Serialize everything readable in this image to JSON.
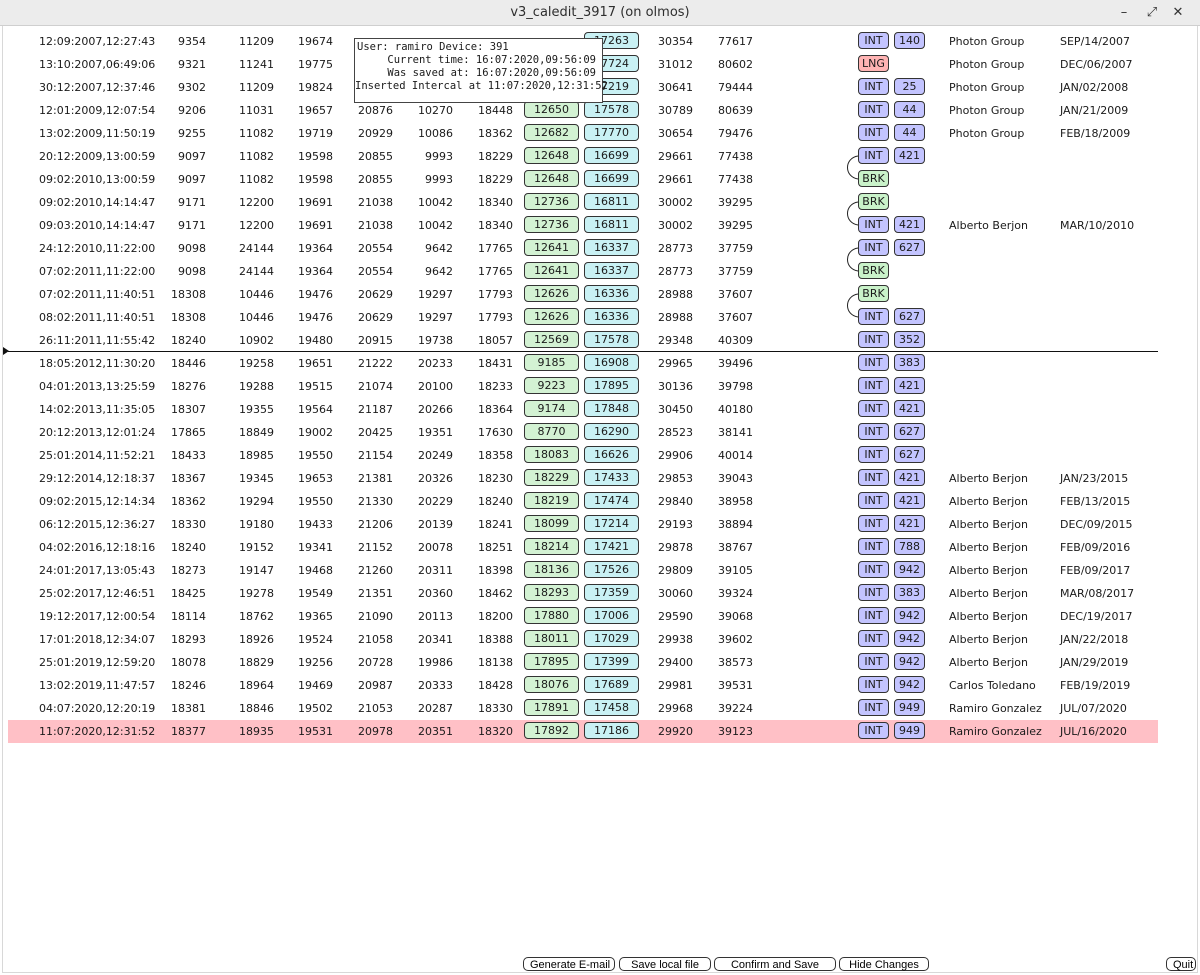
{
  "window": {
    "title": "v3_caledit_3917 (on olmos)",
    "min_icon": "minimize-icon",
    "max_icon": "maximize-icon",
    "close_icon": "close-icon"
  },
  "tooltip": {
    "line1": "User: ramiro Device: 391",
    "line2": "Current time: 16:07:2020,09:56:09",
    "line3": "Was saved at: 16:07:2020,09:56:09",
    "line4": "Inserted Intercal at 11:07:2020,12:31:52"
  },
  "rows": [
    {
      "ts": "12:09:2007,12:27:43",
      "a": "9354",
      "b": "11209",
      "c": "19674",
      "d": "",
      "e": "",
      "f": "",
      "g": "",
      "h": "17263",
      "i": "30354",
      "j": "77617",
      "tag": "INT",
      "num": "140",
      "user": "Photon Group",
      "date": "SEP/14/2007"
    },
    {
      "ts": "13:10:2007,06:49:06",
      "a": "9321",
      "b": "11241",
      "c": "19775",
      "d": "",
      "e": "",
      "f": "",
      "g": "",
      "h": "17724",
      "i": "31012",
      "j": "80602",
      "tag": "LNG",
      "num": "",
      "user": "Photon Group",
      "date": "DEC/06/2007"
    },
    {
      "ts": "30:12:2007,12:37:46",
      "a": "9302",
      "b": "11209",
      "c": "19824",
      "d": "",
      "e": "",
      "f": "",
      "g": "",
      "h": "17219",
      "i": "30641",
      "j": "79444",
      "tag": "INT",
      "num": "25",
      "user": "Photon Group",
      "date": "JAN/02/2008"
    },
    {
      "ts": "12:01:2009,12:07:54",
      "a": "9206",
      "b": "11031",
      "c": "19657",
      "d": "20876",
      "e": "10270",
      "f": "18448",
      "g": "12650",
      "h": "17578",
      "i": "30789",
      "j": "80639",
      "tag": "INT",
      "num": "44",
      "user": "Photon Group",
      "date": "JAN/21/2009"
    },
    {
      "ts": "13:02:2009,11:50:19",
      "a": "9255",
      "b": "11082",
      "c": "19719",
      "d": "20929",
      "e": "10086",
      "f": "18362",
      "g": "12682",
      "h": "17770",
      "i": "30654",
      "j": "79476",
      "tag": "INT",
      "num": "44",
      "user": "Photon Group",
      "date": "FEB/18/2009"
    },
    {
      "ts": "20:12:2009,13:00:59",
      "a": "9097",
      "b": "11082",
      "c": "19598",
      "d": "20855",
      "e": "9993",
      "f": "18229",
      "g": "12648",
      "h": "16699",
      "i": "29661",
      "j": "77438",
      "tag": "INT",
      "num": "421",
      "user": "",
      "date": ""
    },
    {
      "ts": "09:02:2010,13:00:59",
      "a": "9097",
      "b": "11082",
      "c": "19598",
      "d": "20855",
      "e": "9993",
      "f": "18229",
      "g": "12648",
      "h": "16699",
      "i": "29661",
      "j": "77438",
      "tag": "BRK",
      "num": "",
      "user": "",
      "date": ""
    },
    {
      "ts": "09:02:2010,14:14:47",
      "a": "9171",
      "b": "12200",
      "c": "19691",
      "d": "21038",
      "e": "10042",
      "f": "18340",
      "g": "12736",
      "h": "16811",
      "i": "30002",
      "j": "39295",
      "tag": "BRK",
      "num": "",
      "user": "",
      "date": ""
    },
    {
      "ts": "09:03:2010,14:14:47",
      "a": "9171",
      "b": "12200",
      "c": "19691",
      "d": "21038",
      "e": "10042",
      "f": "18340",
      "g": "12736",
      "h": "16811",
      "i": "30002",
      "j": "39295",
      "tag": "INT",
      "num": "421",
      "user": "Alberto Berjon",
      "date": "MAR/10/2010"
    },
    {
      "ts": "24:12:2010,11:22:00",
      "a": "9098",
      "b": "24144",
      "c": "19364",
      "d": "20554",
      "e": "9642",
      "f": "17765",
      "g": "12641",
      "h": "16337",
      "i": "28773",
      "j": "37759",
      "tag": "INT",
      "num": "627",
      "user": "",
      "date": ""
    },
    {
      "ts": "07:02:2011,11:22:00",
      "a": "9098",
      "b": "24144",
      "c": "19364",
      "d": "20554",
      "e": "9642",
      "f": "17765",
      "g": "12641",
      "h": "16337",
      "i": "28773",
      "j": "37759",
      "tag": "BRK",
      "num": "",
      "user": "",
      "date": ""
    },
    {
      "ts": "07:02:2011,11:40:51",
      "a": "18308",
      "b": "10446",
      "c": "19476",
      "d": "20629",
      "e": "19297",
      "f": "17793",
      "g": "12626",
      "h": "16336",
      "i": "28988",
      "j": "37607",
      "tag": "BRK",
      "num": "",
      "user": "",
      "date": ""
    },
    {
      "ts": "08:02:2011,11:40:51",
      "a": "18308",
      "b": "10446",
      "c": "19476",
      "d": "20629",
      "e": "19297",
      "f": "17793",
      "g": "12626",
      "h": "16336",
      "i": "28988",
      "j": "37607",
      "tag": "INT",
      "num": "627",
      "user": "",
      "date": ""
    },
    {
      "ts": "26:11:2011,11:55:42",
      "a": "18240",
      "b": "10902",
      "c": "19480",
      "d": "20915",
      "e": "19738",
      "f": "18057",
      "g": "12569",
      "h": "17578",
      "i": "29348",
      "j": "40309",
      "tag": "INT",
      "num": "352",
      "user": "",
      "date": ""
    },
    {
      "ts": "18:05:2012,11:30:20",
      "a": "18446",
      "b": "19258",
      "c": "19651",
      "d": "21222",
      "e": "20233",
      "f": "18431",
      "g": "9185",
      "h": "16908",
      "i": "29965",
      "j": "39496",
      "tag": "INT",
      "num": "383",
      "user": "",
      "date": ""
    },
    {
      "ts": "04:01:2013,13:25:59",
      "a": "18276",
      "b": "19288",
      "c": "19515",
      "d": "21074",
      "e": "20100",
      "f": "18233",
      "g": "9223",
      "h": "17895",
      "i": "30136",
      "j": "39798",
      "tag": "INT",
      "num": "421",
      "user": "",
      "date": ""
    },
    {
      "ts": "14:02:2013,11:35:05",
      "a": "18307",
      "b": "19355",
      "c": "19564",
      "d": "21187",
      "e": "20266",
      "f": "18364",
      "g": "9174",
      "h": "17848",
      "i": "30450",
      "j": "40180",
      "tag": "INT",
      "num": "421",
      "user": "",
      "date": ""
    },
    {
      "ts": "20:12:2013,12:01:24",
      "a": "17865",
      "b": "18849",
      "c": "19002",
      "d": "20425",
      "e": "19351",
      "f": "17630",
      "g": "8770",
      "h": "16290",
      "i": "28523",
      "j": "38141",
      "tag": "INT",
      "num": "627",
      "user": "",
      "date": ""
    },
    {
      "ts": "25:01:2014,11:52:21",
      "a": "18433",
      "b": "18985",
      "c": "19550",
      "d": "21154",
      "e": "20249",
      "f": "18358",
      "g": "18083",
      "h": "16626",
      "i": "29906",
      "j": "40014",
      "tag": "INT",
      "num": "627",
      "user": "",
      "date": ""
    },
    {
      "ts": "29:12:2014,12:18:37",
      "a": "18367",
      "b": "19345",
      "c": "19653",
      "d": "21381",
      "e": "20326",
      "f": "18230",
      "g": "18229",
      "h": "17433",
      "i": "29853",
      "j": "39043",
      "tag": "INT",
      "num": "421",
      "user": "Alberto Berjon",
      "date": "JAN/23/2015"
    },
    {
      "ts": "09:02:2015,12:14:34",
      "a": "18362",
      "b": "19294",
      "c": "19550",
      "d": "21330",
      "e": "20229",
      "f": "18240",
      "g": "18219",
      "h": "17474",
      "i": "29840",
      "j": "38958",
      "tag": "INT",
      "num": "421",
      "user": "Alberto Berjon",
      "date": "FEB/13/2015"
    },
    {
      "ts": "06:12:2015,12:36:27",
      "a": "18330",
      "b": "19180",
      "c": "19433",
      "d": "21206",
      "e": "20139",
      "f": "18241",
      "g": "18099",
      "h": "17214",
      "i": "29193",
      "j": "38894",
      "tag": "INT",
      "num": "421",
      "user": "Alberto Berjon",
      "date": "DEC/09/2015"
    },
    {
      "ts": "04:02:2016,12:18:16",
      "a": "18240",
      "b": "19152",
      "c": "19341",
      "d": "21152",
      "e": "20078",
      "f": "18251",
      "g": "18214",
      "h": "17421",
      "i": "29878",
      "j": "38767",
      "tag": "INT",
      "num": "788",
      "user": "Alberto Berjon",
      "date": "FEB/09/2016"
    },
    {
      "ts": "24:01:2017,13:05:43",
      "a": "18273",
      "b": "19147",
      "c": "19468",
      "d": "21260",
      "e": "20311",
      "f": "18398",
      "g": "18136",
      "h": "17526",
      "i": "29809",
      "j": "39105",
      "tag": "INT",
      "num": "942",
      "user": "Alberto Berjon",
      "date": "FEB/09/2017"
    },
    {
      "ts": "25:02:2017,12:46:51",
      "a": "18425",
      "b": "19278",
      "c": "19549",
      "d": "21351",
      "e": "20360",
      "f": "18462",
      "g": "18293",
      "h": "17359",
      "i": "30060",
      "j": "39324",
      "tag": "INT",
      "num": "383",
      "user": "Alberto Berjon",
      "date": "MAR/08/2017"
    },
    {
      "ts": "19:12:2017,12:00:54",
      "a": "18114",
      "b": "18762",
      "c": "19365",
      "d": "21090",
      "e": "20113",
      "f": "18200",
      "g": "17880",
      "h": "17006",
      "i": "29590",
      "j": "39068",
      "tag": "INT",
      "num": "942",
      "user": "Alberto Berjon",
      "date": "DEC/19/2017"
    },
    {
      "ts": "17:01:2018,12:34:07",
      "a": "18293",
      "b": "18926",
      "c": "19524",
      "d": "21058",
      "e": "20341",
      "f": "18388",
      "g": "18011",
      "h": "17029",
      "i": "29938",
      "j": "39602",
      "tag": "INT",
      "num": "942",
      "user": "Alberto Berjon",
      "date": "JAN/22/2018"
    },
    {
      "ts": "25:01:2019,12:59:20",
      "a": "18078",
      "b": "18829",
      "c": "19256",
      "d": "20728",
      "e": "19986",
      "f": "18138",
      "g": "17895",
      "h": "17399",
      "i": "29400",
      "j": "38573",
      "tag": "INT",
      "num": "942",
      "user": "Alberto Berjon",
      "date": "JAN/29/2019"
    },
    {
      "ts": "13:02:2019,11:47:57",
      "a": "18246",
      "b": "18964",
      "c": "19469",
      "d": "20987",
      "e": "20333",
      "f": "18428",
      "g": "18076",
      "h": "17689",
      "i": "29981",
      "j": "39531",
      "tag": "INT",
      "num": "942",
      "user": "Carlos Toledano",
      "date": "FEB/19/2019"
    },
    {
      "ts": "04:07:2020,12:20:19",
      "a": "18381",
      "b": "18846",
      "c": "19502",
      "d": "21053",
      "e": "20287",
      "f": "18330",
      "g": "17891",
      "h": "17458",
      "i": "29968",
      "j": "39224",
      "tag": "INT",
      "num": "949",
      "user": "Ramiro Gonzalez",
      "date": "JUL/07/2020"
    },
    {
      "ts": "11:07:2020,12:31:52",
      "a": "18377",
      "b": "18935",
      "c": "19531",
      "d": "20978",
      "e": "20351",
      "f": "18320",
      "g": "17892",
      "h": "17186",
      "i": "29920",
      "j": "39123",
      "tag": "INT",
      "num": "949",
      "user": "Ramiro Gonzalez",
      "date": "JUL/16/2020"
    }
  ],
  "selected_row": 30,
  "divider_after_row": 13,
  "buttons": {
    "generate_email": "Generate E-mail",
    "save_local": "Save local file",
    "confirm_save": "Confirm and Save",
    "hide_changes": "Hide Changes",
    "quit": "Quit"
  },
  "colors": {
    "selected": "#ffc0c6",
    "int_tag": "#c3c4ff",
    "lng_tag": "#ffb4b4",
    "brk_tag": "#c9f2c9",
    "green_cell": "#d3f2d3",
    "cyan_cell": "#c9f1f4"
  }
}
